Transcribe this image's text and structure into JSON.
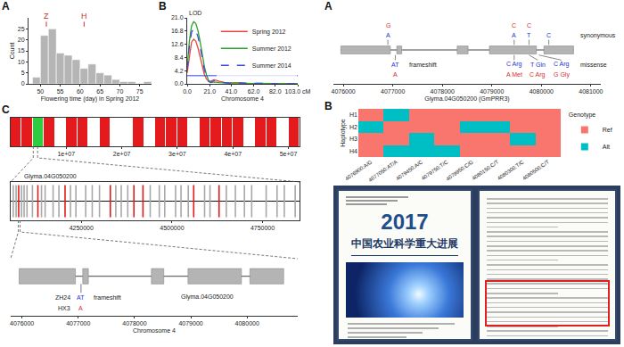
{
  "chart_data": [
    {
      "panel_label": "A",
      "type": "histogram",
      "bins": [
        48,
        50,
        52,
        54,
        56,
        58,
        60,
        62,
        64,
        66,
        68,
        70,
        72,
        74,
        76,
        78
      ],
      "counts": [
        3,
        22,
        25,
        14,
        13,
        11,
        7,
        9,
        5,
        4,
        2,
        1,
        1,
        0,
        1
      ],
      "color": "#b5b5b5",
      "xlabel": "Flowering time (day) in Spring 2012",
      "ylabel": "Count",
      "xlim": [
        47,
        78
      ],
      "xticks": [
        50,
        55,
        60,
        65,
        70,
        75
      ],
      "ylim": [
        0,
        30
      ],
      "yticks": [
        0,
        5,
        10,
        15,
        20,
        25
      ],
      "annotations": [
        {
          "text": "Z",
          "x": 51.5,
          "y": 26
        },
        {
          "text": "H",
          "x": 61,
          "y": 26
        }
      ]
    },
    {
      "panel_label": "B",
      "type": "line",
      "x": [
        0,
        2,
        4,
        6,
        8,
        10,
        12,
        14,
        16,
        18,
        20,
        22,
        25,
        30,
        35,
        40,
        45,
        50,
        55,
        60,
        65,
        70,
        75,
        80,
        85,
        90,
        95,
        100,
        103
      ],
      "series": [
        {
          "name": "Spring 2012",
          "color": "#e8473f",
          "line_style": "solid",
          "values": [
            3.5,
            9,
            13.2,
            14.2,
            13.6,
            11.5,
            8.5,
            5.5,
            3,
            1.5,
            0.8,
            0.9,
            1.3,
            0.8,
            0.4,
            0.3,
            0.4,
            0.3,
            0.2,
            0.2,
            0.3,
            0.2,
            0.2,
            0.1,
            0.2,
            0.1,
            0.2,
            0.1,
            0.1
          ]
        },
        {
          "name": "Summer 2012",
          "color": "#2ca02c",
          "line_style": "solid",
          "values": [
            5,
            13.5,
            18.3,
            19.8,
            19.2,
            17,
            13.5,
            9.5,
            5.5,
            2.8,
            1,
            0.4,
            0.6,
            0.4,
            0.2,
            0.2,
            0.3,
            0.2,
            0.1,
            0.1,
            0.2,
            0.1,
            0.1,
            0.1,
            0.1,
            0.1,
            0.1,
            0.1,
            0.1
          ]
        },
        {
          "name": "Summer 2014",
          "color": "#3a4fd6",
          "line_style": "dash",
          "values": [
            4.5,
            12,
            16.3,
            17.6,
            17,
            15,
            11.8,
            8,
            4.5,
            2.2,
            0.7,
            0.5,
            1,
            0.6,
            0.3,
            0.2,
            0.3,
            0.2,
            0.2,
            0.1,
            0.2,
            0.1,
            0.1,
            0.1,
            0.1,
            0.1,
            0.1,
            0.1,
            0.1
          ]
        }
      ],
      "threshold": 2.6,
      "xlabel": "Chromosome 4",
      "ylabel": "LOD",
      "xlim": [
        0,
        103
      ],
      "xticks": [
        {
          "value": 0,
          "label": "0.0"
        },
        {
          "value": 21,
          "label": "21.0"
        },
        {
          "value": 41,
          "label": "41.0"
        },
        {
          "value": 62,
          "label": "62.0"
        },
        {
          "value": 82,
          "label": "82.0"
        },
        {
          "value": 103,
          "label": "103.0 cM"
        }
      ],
      "ylim": [
        0,
        21
      ],
      "yticks": [
        {
          "value": 0,
          "label": "0.0"
        },
        {
          "value": 4.2,
          "label": "4.2"
        },
        {
          "value": 8.4,
          "label": "8.4"
        },
        {
          "value": 12.6,
          "label": "12.6"
        },
        {
          "value": 16.8,
          "label": "16.8"
        },
        {
          "value": 21,
          "label": "21.0"
        }
      ],
      "legend": "upper right"
    },
    {
      "panel_label": "C",
      "type": "heatmap",
      "bins": [
        0,
        2000000,
        4000000,
        6000000,
        8000000,
        10000000,
        12000000,
        14000000,
        16000000,
        18000000,
        20000000,
        22000000,
        24000000,
        26000000,
        28000000,
        30000000,
        32000000,
        34000000,
        36000000,
        38000000,
        40000000,
        42000000,
        44000000,
        46000000,
        48000000,
        50000000,
        52000000
      ],
      "cells": [
        1,
        1,
        2,
        1,
        0,
        1,
        1,
        0,
        1,
        0,
        0,
        1,
        0,
        1,
        1,
        1,
        0,
        1,
        1,
        1,
        1,
        0,
        1,
        1,
        0,
        1
      ],
      "xlim": [
        0,
        52000000
      ],
      "xticks": [
        {
          "value": 10000000,
          "label": "1e+07"
        },
        {
          "value": 20000000,
          "label": "2e+07"
        },
        {
          "value": 30000000,
          "label": "3e+07"
        },
        {
          "value": 40000000,
          "label": "4e+07"
        },
        {
          "value": 50000000,
          "label": "5e+07"
        }
      ]
    },
    {
      "type": "track",
      "xlim": [
        4055000,
        4852000
      ],
      "xticks": [
        4250000,
        4500000,
        4750000
      ],
      "gray_marks": [
        4062000,
        4070000,
        4085000,
        4092000,
        4100000,
        4115000,
        4140000,
        4150000,
        4172000,
        4188000,
        4220000,
        4235000,
        4262000,
        4280000,
        4300000,
        4345000,
        4360000,
        4378000,
        4440000,
        4465000,
        4480000,
        4510000,
        4525000,
        4545000,
        4590000,
        4605000,
        4650000,
        4675000,
        4700000,
        4720000,
        4760000,
        4790000,
        4810000,
        4840000
      ],
      "red_marks": [
        4077000,
        4130000,
        4205000,
        4330000,
        4395000,
        4420000,
        4560000,
        4630000
      ],
      "annotations": [
        {
          "text": "Glyma.04G050200",
          "x": 4077000
        }
      ]
    },
    {
      "type": "gene_model",
      "xlim": [
        4075800,
        4080900
      ],
      "xticks": [
        4076000,
        4077000,
        4078000,
        4079000,
        4080000
      ],
      "xlabel": "Chromosome 4",
      "exons": [
        [
          4075950,
          4076950
        ],
        [
          4077080,
          4077180
        ],
        [
          4078300,
          4078520
        ],
        [
          4078950,
          4079900
        ],
        [
          4080050,
          4080650
        ]
      ],
      "variant": {
        "x": 4077050,
        "samples": [
          "ZH24",
          "HX3"
        ],
        "alleles": [
          "AT",
          "A"
        ],
        "effect": "frameshift"
      },
      "annotations": [
        {
          "text": "Glyma.04G050200",
          "x": 4079300
        }
      ]
    },
    {
      "panel_label": "A",
      "type": "gene_model",
      "xlim": [
        4075800,
        4081200
      ],
      "xticks": [
        4076000,
        4077000,
        4078000,
        4079000,
        4080000,
        4081000
      ],
      "xlabel": "Glyma.04G050200 (GmPRR3)",
      "exons": [
        [
          4075950,
          4076950
        ],
        [
          4077080,
          4077180
        ],
        [
          4078300,
          4078520
        ],
        [
          4078950,
          4079900
        ],
        [
          4080050,
          4080650
        ]
      ],
      "variants": [
        {
          "x": 4076900,
          "above": [
            "A",
            "G"
          ]
        },
        {
          "x": 4077050,
          "below": [
            "AT",
            "A"
          ]
        },
        {
          "x": 4079450,
          "above": [
            "A",
            "C"
          ],
          "below": [
            "C Arg",
            "A Met"
          ]
        },
        {
          "x": 4079750,
          "above": [
            "T",
            "C"
          ],
          "below": [
            "T Gln",
            "C Arg"
          ]
        },
        {
          "x": 4079950,
          "below": [
            "C Arg",
            "G Gly"
          ]
        },
        {
          "x": 4080150,
          "above": [
            "C"
          ]
        }
      ],
      "annotations": [
        {
          "text": "frameshift",
          "x": 4077300,
          "y": -1.3
        },
        {
          "text": "missense",
          "x": 4080750,
          "y": -1.3
        },
        {
          "text": "synonymous",
          "x": 4080750,
          "y": 1.3
        }
      ]
    },
    {
      "panel_label": "B",
      "type": "heatmap",
      "x": [
        "4076900:A/G",
        "4077050:AT/A",
        "4079450:A/C",
        "4079750:T/C",
        "4079950:C/G",
        "4080150:C/T",
        "4080300:T/C",
        "4080500:C/T"
      ],
      "y": [
        "H1",
        "H2",
        "H3",
        "H4"
      ],
      "cells": [
        [
          0,
          1,
          0,
          0,
          0,
          0,
          0,
          0
        ],
        [
          1,
          0,
          0,
          0,
          1,
          1,
          0,
          0
        ],
        [
          0,
          0,
          1,
          0,
          0,
          0,
          1,
          0
        ],
        [
          0,
          1,
          1,
          1,
          0,
          0,
          0,
          0
        ]
      ],
      "ylabel": "Haplotype",
      "legend_title": "Genotype",
      "levels": [
        "Ref",
        "Alt"
      ],
      "colors": [
        "#f8766d",
        "#00bfc4"
      ],
      "legend": "right"
    }
  ],
  "document": {
    "cover_year": "2017",
    "cover_title": "中国农业科学重大进展"
  }
}
